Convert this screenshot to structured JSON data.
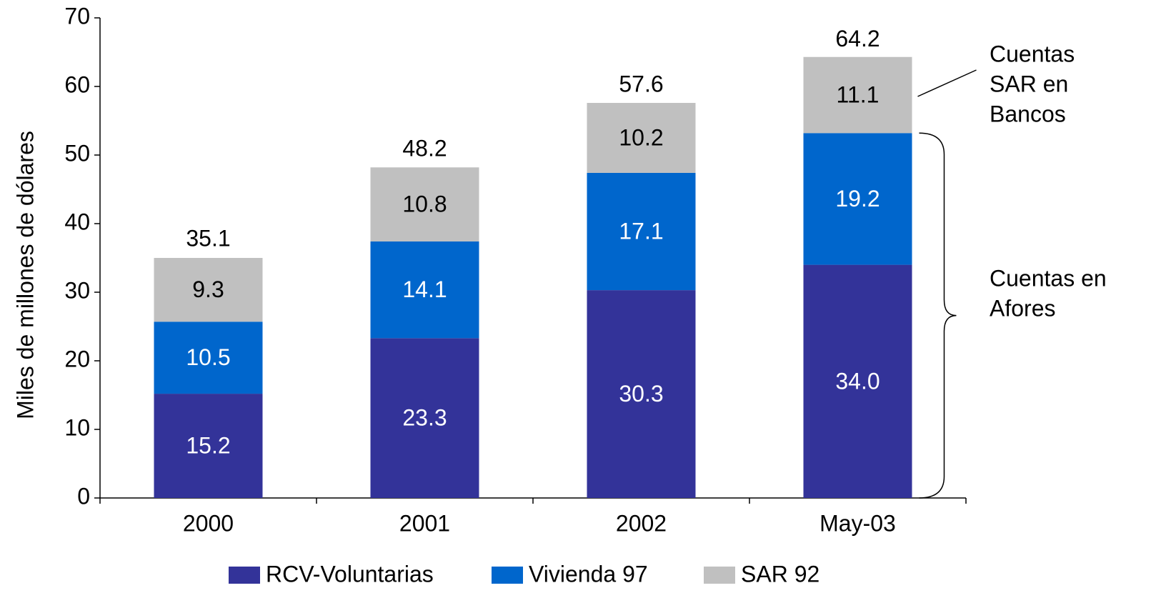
{
  "chart_data": {
    "type": "stacked_bar",
    "y_label": "Miles de millones de dólares",
    "categories": [
      "2000",
      "2001",
      "2002",
      "May-03"
    ],
    "series": [
      {
        "name": "RCV-Voluntarias",
        "color": "#333399",
        "label_color": "#ffffff",
        "values": [
          15.2,
          23.3,
          30.3,
          34.0
        ],
        "value_labels": [
          "15.2",
          "23.3",
          "30.3",
          "34.0"
        ]
      },
      {
        "name": "Vivienda 97",
        "color": "#0066cc",
        "label_color": "#ffffff",
        "values": [
          10.5,
          14.1,
          17.1,
          19.2
        ]
      },
      {
        "name": "SAR 92",
        "color": "#c0c0c0",
        "label_color": "#000000",
        "values": [
          9.3,
          10.8,
          10.2,
          11.1
        ]
      }
    ],
    "totals": [
      35.1,
      48.2,
      57.6,
      64.2
    ],
    "ylim": [
      0,
      70
    ],
    "yticks": [
      0,
      10,
      20,
      30,
      40,
      50,
      60,
      70
    ],
    "legend": "bottom",
    "annotations": [
      {
        "lines": [
          "Cuentas",
          "SAR en",
          "Bancos"
        ]
      },
      {
        "lines": [
          "Cuentas en",
          "Afores"
        ]
      }
    ]
  }
}
